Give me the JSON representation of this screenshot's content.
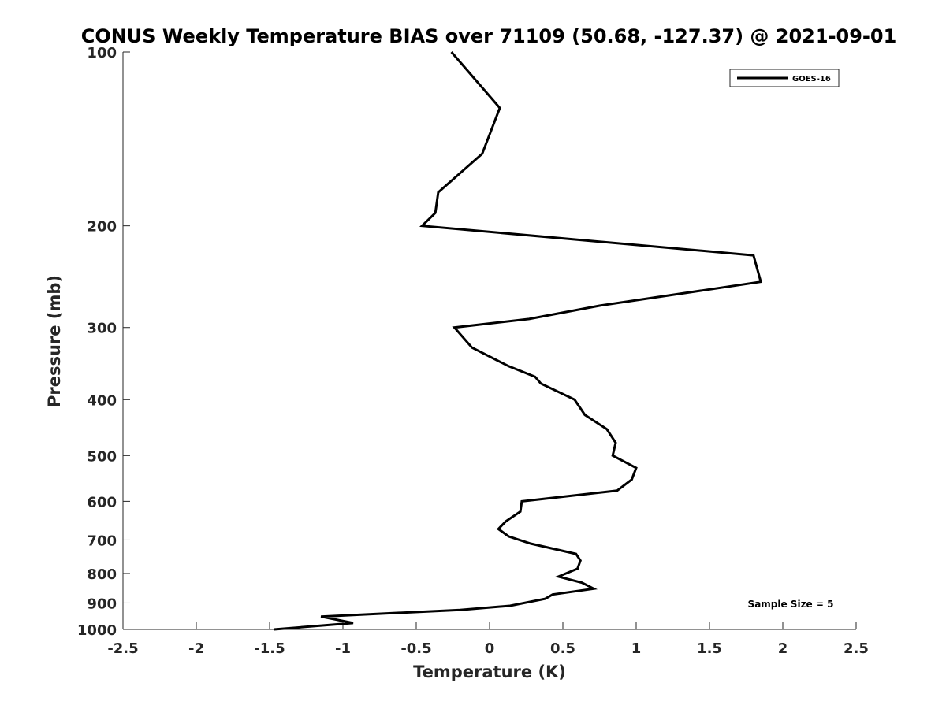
{
  "chart_data": {
    "type": "line",
    "title": "CONUS Weekly Temperature BIAS over 71109 (50.68, -127.37) @ 2021-09-01",
    "xlabel": "Temperature (K)",
    "ylabel": "Pressure (mb)",
    "xlim": [
      -2.5,
      2.5
    ],
    "ylim": [
      100,
      1000
    ],
    "y_scale": "log",
    "y_reversed": true,
    "x_ticks": [
      -2.5,
      -2,
      -1.5,
      -1,
      -0.5,
      0,
      0.5,
      1,
      1.5,
      2,
      2.5
    ],
    "x_tick_labels": [
      "-2.5",
      "-2",
      "-1.5",
      "-1",
      "-0.5",
      "0",
      "0.5",
      "1",
      "1.5",
      "2",
      "2.5"
    ],
    "y_ticks": [
      100,
      200,
      300,
      400,
      500,
      600,
      700,
      800,
      900,
      1000
    ],
    "y_tick_labels": [
      "100",
      "200",
      "300",
      "400",
      "500",
      "600",
      "700",
      "800",
      "900",
      "1000"
    ],
    "grid": false,
    "legend_position": "top-right",
    "series": [
      {
        "name": "GOES-16",
        "color": "#000000",
        "points": [
          {
            "x": -0.26,
            "y": 100
          },
          {
            "x": 0.07,
            "y": 125
          },
          {
            "x": -0.05,
            "y": 150
          },
          {
            "x": -0.35,
            "y": 175
          },
          {
            "x": -0.37,
            "y": 190
          },
          {
            "x": -0.46,
            "y": 200
          },
          {
            "x": 1.8,
            "y": 225
          },
          {
            "x": 1.85,
            "y": 250
          },
          {
            "x": 0.75,
            "y": 275
          },
          {
            "x": 0.27,
            "y": 290
          },
          {
            "x": -0.24,
            "y": 300
          },
          {
            "x": -0.12,
            "y": 325
          },
          {
            "x": 0.13,
            "y": 350
          },
          {
            "x": 0.31,
            "y": 365
          },
          {
            "x": 0.35,
            "y": 375
          },
          {
            "x": 0.58,
            "y": 400
          },
          {
            "x": 0.65,
            "y": 425
          },
          {
            "x": 0.8,
            "y": 450
          },
          {
            "x": 0.86,
            "y": 475
          },
          {
            "x": 0.84,
            "y": 500
          },
          {
            "x": 1.0,
            "y": 525
          },
          {
            "x": 0.97,
            "y": 550
          },
          {
            "x": 0.87,
            "y": 575
          },
          {
            "x": 0.22,
            "y": 600
          },
          {
            "x": 0.21,
            "y": 625
          },
          {
            "x": 0.11,
            "y": 650
          },
          {
            "x": 0.06,
            "y": 670
          },
          {
            "x": 0.13,
            "y": 690
          },
          {
            "x": 0.28,
            "y": 710
          },
          {
            "x": 0.59,
            "y": 740
          },
          {
            "x": 0.62,
            "y": 760
          },
          {
            "x": 0.6,
            "y": 785
          },
          {
            "x": 0.47,
            "y": 810
          },
          {
            "x": 0.63,
            "y": 830
          },
          {
            "x": 0.71,
            "y": 850
          },
          {
            "x": 0.43,
            "y": 870
          },
          {
            "x": 0.38,
            "y": 885
          },
          {
            "x": 0.14,
            "y": 910
          },
          {
            "x": -0.2,
            "y": 925
          },
          {
            "x": -1.15,
            "y": 950
          },
          {
            "x": -0.93,
            "y": 975
          },
          {
            "x": -1.47,
            "y": 1000
          }
        ]
      }
    ],
    "annotations": [
      {
        "text": "Sample Size = 5"
      }
    ]
  }
}
